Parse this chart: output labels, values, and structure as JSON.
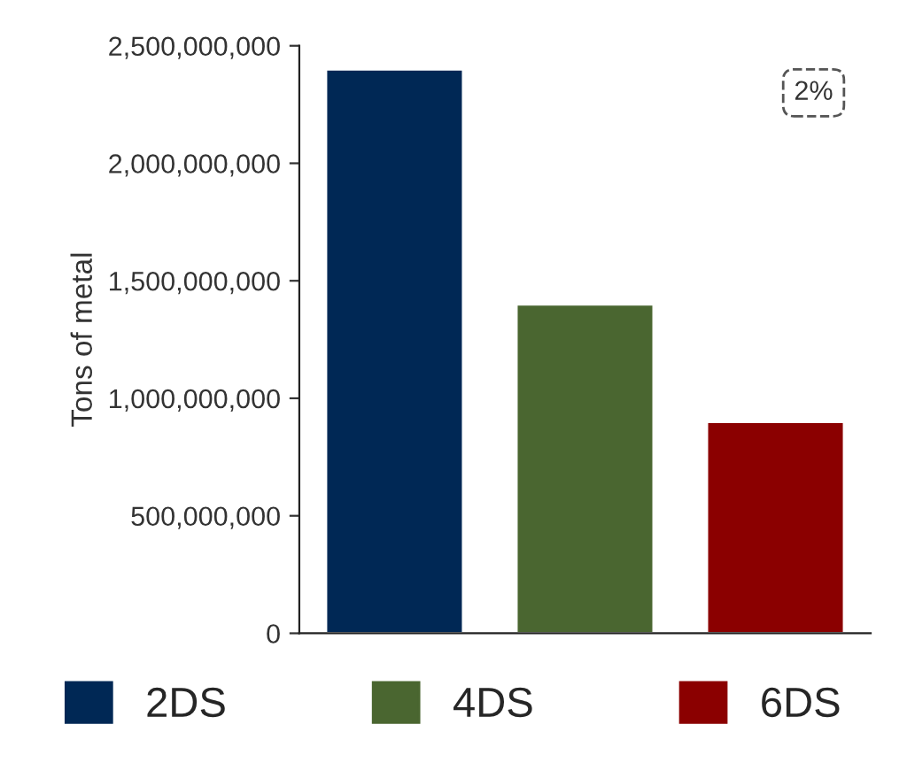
{
  "chart_data": {
    "type": "bar",
    "ylabel": "Tons of metal",
    "categories": [
      null,
      null,
      null
    ],
    "series": [
      {
        "name": "2DS",
        "color": "#002855",
        "values": [
          2400000000,
          null,
          null
        ]
      },
      {
        "name": "4DS",
        "color": "#4a6630",
        "values": [
          null,
          1400000000,
          null
        ]
      },
      {
        "name": "6DS",
        "color": "#8b0000",
        "values": [
          null,
          null,
          900000000
        ]
      }
    ],
    "ylim": [
      0,
      2500000000
    ],
    "yticks": [
      {
        "value": 0,
        "label": "0"
      },
      {
        "value": 500000000,
        "label": "500,000,000"
      },
      {
        "value": 1000000000,
        "label": "1,000,000,000"
      },
      {
        "value": 1500000000,
        "label": "1,500,000,000"
      },
      {
        "value": 2000000000,
        "label": "2,000,000,000"
      },
      {
        "value": 2500000000,
        "label": "2,500,000,000"
      }
    ],
    "annotations": [
      "2%"
    ],
    "legend": "bottom",
    "grid": false
  }
}
